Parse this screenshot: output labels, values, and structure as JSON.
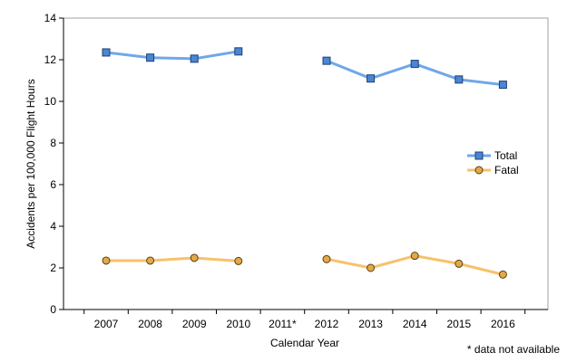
{
  "chart_data": {
    "type": "line",
    "categories": [
      "2007",
      "2008",
      "2009",
      "2010",
      "2011*",
      "2012",
      "2013",
      "2014",
      "2015",
      "2016"
    ],
    "series": [
      {
        "name": "Total",
        "values": [
          12.35,
          12.1,
          12.05,
          12.4,
          null,
          11.95,
          11.1,
          11.8,
          11.05,
          10.8
        ],
        "color": "#6fa8e8",
        "marker": "square",
        "marker_fill": "#4a86d4"
      },
      {
        "name": "Fatal",
        "values": [
          2.35,
          2.35,
          2.48,
          2.33,
          null,
          2.42,
          2.0,
          2.58,
          2.2,
          1.68
        ],
        "color": "#f7c26b",
        "marker": "circle",
        "marker_fill": "#e3a84a"
      }
    ],
    "xlabel": "Calendar Year",
    "ylabel": "Accidents per 100,000 Flight Hours",
    "ylim": [
      0,
      14
    ],
    "yticks": [
      0,
      2,
      4,
      6,
      8,
      10,
      12,
      14
    ],
    "grid": false,
    "legend_position": "right",
    "footnote": "* data not available"
  }
}
